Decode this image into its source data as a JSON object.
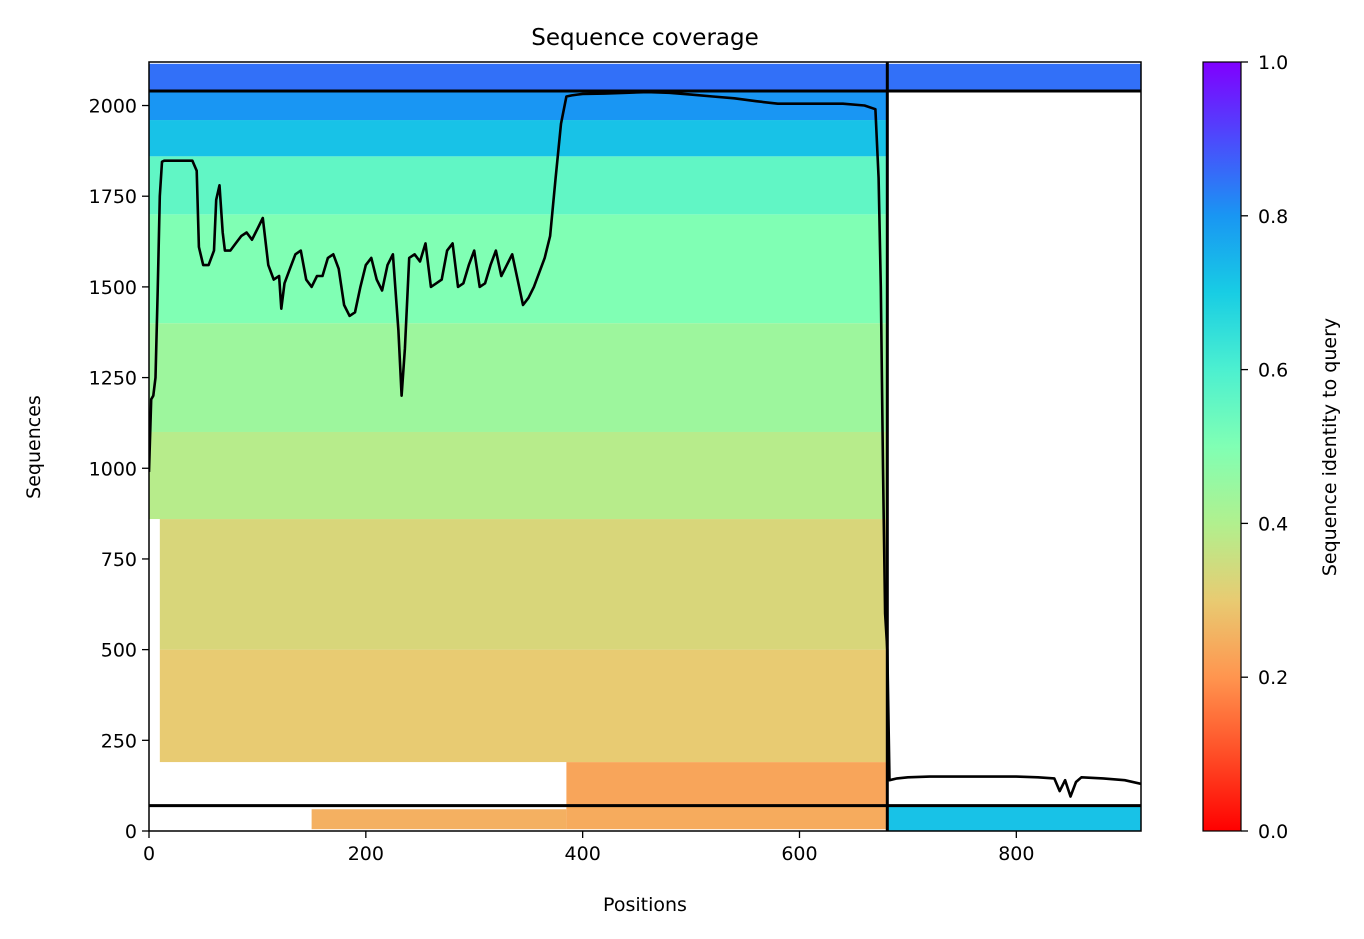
{
  "chart_data": {
    "type": "heatmap",
    "title": "Sequence coverage",
    "xlabel": "Positions",
    "ylabel": "Sequences",
    "xlim": [
      0,
      915
    ],
    "ylim": [
      0,
      2120
    ],
    "xticks": [
      0,
      200,
      400,
      600,
      800
    ],
    "yticks": [
      0,
      250,
      500,
      750,
      1000,
      1250,
      1500,
      1750,
      2000
    ],
    "colorbar": {
      "label": "Sequence identity to query",
      "colormap": "rainbow_r",
      "range": [
        0,
        1
      ],
      "ticks": [
        0.0,
        0.2,
        0.4,
        0.6,
        0.8,
        1.0
      ],
      "tick_labels": [
        "0.0",
        "0.2",
        "0.4",
        "0.6",
        "0.8",
        "1.0"
      ]
    },
    "chain_boundaries": {
      "vertical_x": [
        681
      ],
      "horizontal_y": [
        70,
        2040
      ]
    },
    "identity_bands": [
      {
        "x": [
          150,
          385
        ],
        "y": [
          5,
          60
        ],
        "identity": 0.25
      },
      {
        "x": [
          385,
          681
        ],
        "y": [
          5,
          70
        ],
        "identity": 0.24
      },
      {
        "x": [
          385,
          681
        ],
        "y": [
          70,
          190
        ],
        "identity": 0.23
      },
      {
        "x": [
          10,
          681
        ],
        "y": [
          190,
          500
        ],
        "identity": 0.3
      },
      {
        "x": [
          10,
          681
        ],
        "y": [
          500,
          860
        ],
        "identity": 0.33
      },
      {
        "x": [
          0,
          681
        ],
        "y": [
          860,
          1100
        ],
        "identity": 0.39
      },
      {
        "x": [
          0,
          681
        ],
        "y": [
          1100,
          1400
        ],
        "identity": 0.44
      },
      {
        "x": [
          0,
          681
        ],
        "y": [
          1400,
          1700
        ],
        "identity": 0.5
      },
      {
        "x": [
          0,
          681
        ],
        "y": [
          1700,
          1860
        ],
        "identity": 0.56
      },
      {
        "x": [
          0,
          681
        ],
        "y": [
          1860,
          1960
        ],
        "identity": 0.72
      },
      {
        "x": [
          0,
          681
        ],
        "y": [
          1960,
          2040
        ],
        "identity": 0.8
      },
      {
        "x": [
          0,
          681
        ],
        "y": [
          2040,
          2115
        ],
        "identity": 0.85
      },
      {
        "x": [
          681,
          915
        ],
        "y": [
          2040,
          2115
        ],
        "identity": 0.85
      },
      {
        "x": [
          681,
          915
        ],
        "y": [
          0,
          70
        ],
        "identity": 0.72
      }
    ],
    "coverage": {
      "name": "coverage",
      "x": [
        0,
        2,
        4,
        6,
        8,
        10,
        12,
        14,
        18,
        25,
        30,
        40,
        44,
        46,
        50,
        55,
        60,
        62,
        65,
        68,
        70,
        75,
        80,
        85,
        90,
        95,
        100,
        105,
        110,
        115,
        120,
        122,
        125,
        130,
        135,
        140,
        145,
        150,
        155,
        160,
        165,
        170,
        175,
        180,
        185,
        190,
        195,
        200,
        205,
        210,
        215,
        220,
        225,
        230,
        233,
        236,
        240,
        245,
        250,
        255,
        260,
        265,
        270,
        275,
        280,
        285,
        290,
        295,
        300,
        305,
        310,
        315,
        320,
        325,
        330,
        335,
        340,
        345,
        350,
        355,
        360,
        365,
        370,
        375,
        380,
        385,
        390,
        395,
        400,
        420,
        440,
        460,
        480,
        500,
        520,
        540,
        560,
        580,
        600,
        620,
        640,
        660,
        670,
        673,
        675,
        677,
        679,
        681,
        683,
        690,
        700,
        720,
        740,
        760,
        780,
        800,
        820,
        835,
        840,
        845,
        850,
        855,
        860,
        880,
        900,
        915
      ],
      "values": [
        990,
        1190,
        1200,
        1250,
        1490,
        1750,
        1845,
        1848,
        1848,
        1848,
        1848,
        1848,
        1820,
        1610,
        1560,
        1560,
        1600,
        1740,
        1780,
        1650,
        1600,
        1600,
        1620,
        1640,
        1650,
        1630,
        1660,
        1690,
        1560,
        1520,
        1530,
        1440,
        1510,
        1550,
        1590,
        1600,
        1520,
        1500,
        1530,
        1530,
        1580,
        1590,
        1550,
        1450,
        1420,
        1430,
        1500,
        1560,
        1580,
        1520,
        1490,
        1560,
        1590,
        1380,
        1200,
        1330,
        1580,
        1590,
        1570,
        1620,
        1500,
        1510,
        1520,
        1600,
        1620,
        1500,
        1510,
        1560,
        1600,
        1500,
        1510,
        1560,
        1600,
        1530,
        1560,
        1590,
        1520,
        1450,
        1470,
        1500,
        1540,
        1580,
        1640,
        1800,
        1950,
        2025,
        2028,
        2030,
        2032,
        2033,
        2035,
        2037,
        2035,
        2030,
        2025,
        2020,
        2012,
        2005,
        2005,
        2005,
        2005,
        2000,
        1990,
        1800,
        1500,
        1000,
        600,
        500,
        140,
        145,
        148,
        150,
        150,
        150,
        150,
        150,
        148,
        145,
        110,
        140,
        95,
        135,
        148,
        145,
        140,
        130
      ]
    }
  }
}
